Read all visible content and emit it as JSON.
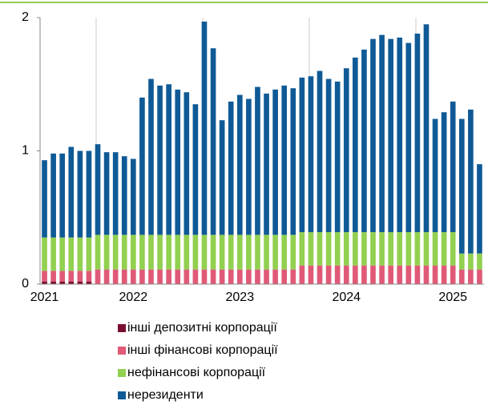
{
  "chart_data": {
    "type": "stacked_bar",
    "categories": [
      "2021",
      null,
      null,
      null,
      null,
      null,
      null,
      null,
      null,
      null,
      "2022",
      null,
      null,
      null,
      null,
      null,
      null,
      null,
      null,
      null,
      null,
      null,
      "2023",
      null,
      null,
      null,
      null,
      null,
      null,
      null,
      null,
      null,
      null,
      null,
      "2024",
      null,
      null,
      null,
      null,
      null,
      null,
      null,
      null,
      null,
      null,
      null,
      "2025",
      null,
      null,
      null
    ],
    "series": [
      {
        "name": "інші депозитні корпорації",
        "color": "#7b0f2f",
        "values": [
          0.02,
          0.02,
          0.02,
          0.02,
          0.02,
          0.02,
          0,
          0,
          0,
          0,
          0,
          0,
          0,
          0,
          0,
          0,
          0,
          0,
          0,
          0,
          0,
          0,
          0,
          0,
          0,
          0,
          0,
          0,
          0,
          0,
          0,
          0,
          0,
          0,
          0,
          0,
          0,
          0,
          0,
          0,
          0,
          0,
          0,
          0,
          0,
          0,
          0,
          0,
          0,
          0
        ]
      },
      {
        "name": "інші фінансові корпорації",
        "color": "#e05a78",
        "values": [
          0.08,
          0.08,
          0.08,
          0.08,
          0.08,
          0.08,
          0.11,
          0.11,
          0.11,
          0.11,
          0.11,
          0.11,
          0.11,
          0.11,
          0.11,
          0.11,
          0.11,
          0.11,
          0.11,
          0.11,
          0.11,
          0.11,
          0.11,
          0.11,
          0.11,
          0.11,
          0.11,
          0.11,
          0.11,
          0.14,
          0.14,
          0.14,
          0.14,
          0.14,
          0.14,
          0.14,
          0.14,
          0.14,
          0.14,
          0.14,
          0.14,
          0.14,
          0.14,
          0.14,
          0.14,
          0.14,
          0.14,
          0.11,
          0.11,
          0.11
        ]
      },
      {
        "name": "нефінансові корпорації",
        "color": "#92d050",
        "values": [
          0.25,
          0.25,
          0.25,
          0.25,
          0.25,
          0.25,
          0.26,
          0.26,
          0.26,
          0.26,
          0.26,
          0.26,
          0.26,
          0.26,
          0.26,
          0.26,
          0.26,
          0.26,
          0.26,
          0.26,
          0.26,
          0.26,
          0.26,
          0.26,
          0.26,
          0.26,
          0.26,
          0.26,
          0.26,
          0.25,
          0.25,
          0.25,
          0.25,
          0.25,
          0.25,
          0.25,
          0.25,
          0.25,
          0.25,
          0.25,
          0.25,
          0.25,
          0.25,
          0.25,
          0.25,
          0.25,
          0.25,
          0.12,
          0.12,
          0.12
        ]
      },
      {
        "name": "нерезиденти",
        "color": "#0f5a96",
        "values": [
          0.58,
          0.63,
          0.63,
          0.68,
          0.65,
          0.65,
          0.68,
          0.62,
          0.62,
          0.59,
          0.57,
          1.03,
          1.17,
          1.12,
          1.13,
          1.09,
          1.07,
          0.98,
          1.6,
          1.4,
          0.86,
          1.0,
          1.05,
          1.02,
          1.11,
          1.06,
          1.09,
          1.12,
          1.1,
          1.16,
          1.17,
          1.21,
          1.15,
          1.13,
          1.23,
          1.31,
          1.37,
          1.45,
          1.48,
          1.45,
          1.46,
          1.42,
          1.49,
          1.56,
          0.85,
          0.9,
          0.98,
          1.01,
          1.08,
          0.67
        ]
      }
    ],
    "ylim": [
      0,
      2
    ],
    "yticks": [
      0,
      1,
      2
    ]
  }
}
